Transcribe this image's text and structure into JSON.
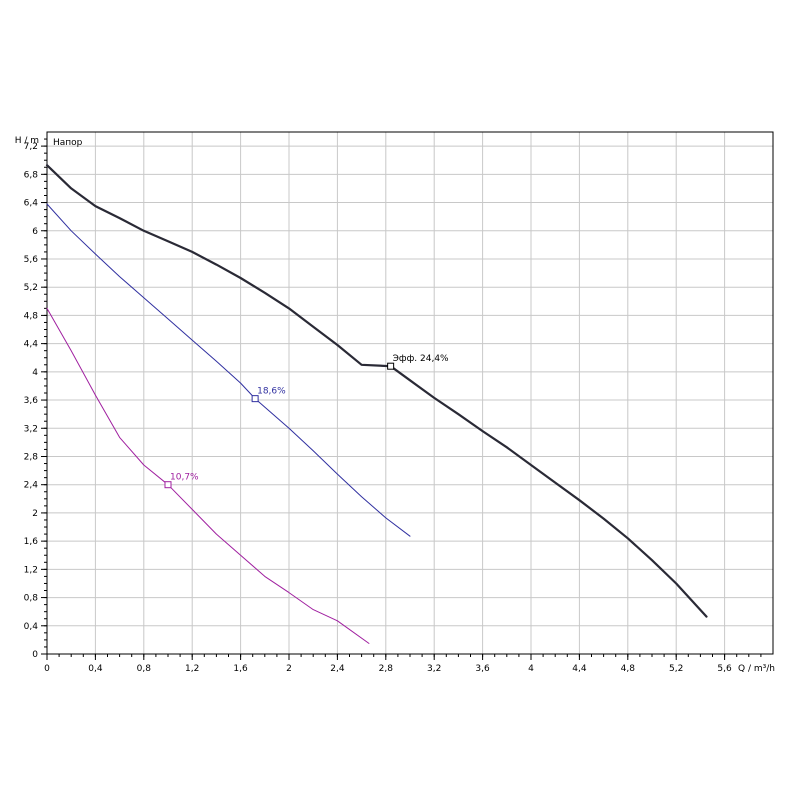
{
  "chart_data": {
    "type": "line",
    "title": "Напор",
    "xlabel": "Q / m³/h",
    "ylabel": "H / m",
    "x_ticks": [
      "0",
      "0,4",
      "0,8",
      "1,2",
      "1,6",
      "2",
      "2,4",
      "2,8",
      "3,2",
      "3,6",
      "4",
      "4,4",
      "4,8",
      "5,2",
      "5,6"
    ],
    "y_ticks": [
      "0",
      "0,4",
      "0,8",
      "1,2",
      "1,6",
      "2",
      "2,4",
      "2,8",
      "3,2",
      "3,6",
      "4",
      "4,4",
      "4,8",
      "5,2",
      "5,6",
      "6",
      "6,4",
      "6,8",
      "7,2"
    ],
    "xlim": [
      0,
      6.0
    ],
    "ylim": [
      0,
      7.4
    ],
    "grid": true,
    "series": [
      {
        "name": "",
        "color": "#2a2a36",
        "x": [
          0,
          0.2,
          0.4,
          0.6,
          0.8,
          1.0,
          1.2,
          1.4,
          1.6,
          1.8,
          2.0,
          2.2,
          2.4,
          2.6,
          2.84,
          3.0,
          3.2,
          3.4,
          3.6,
          3.8,
          4.0,
          4.2,
          4.4,
          4.6,
          4.8,
          5.0,
          5.2,
          5.45
        ],
        "y": [
          6.93,
          6.6,
          6.35,
          6.18,
          6.0,
          5.85,
          5.7,
          5.52,
          5.33,
          5.12,
          4.9,
          4.64,
          4.38,
          4.1,
          4.08,
          3.88,
          3.63,
          3.4,
          3.16,
          2.93,
          2.68,
          2.43,
          2.18,
          1.92,
          1.64,
          1.33,
          1.0,
          0.53
        ],
        "marker": {
          "x": 2.84,
          "y": 4.08,
          "label": "Эфф.  24,4%"
        }
      },
      {
        "name": "",
        "color": "#3030a0",
        "x": [
          0,
          0.2,
          0.4,
          0.6,
          0.8,
          1.0,
          1.2,
          1.4,
          1.6,
          1.72,
          1.8,
          2.0,
          2.2,
          2.4,
          2.6,
          2.8,
          3.0
        ],
        "y": [
          6.38,
          6.0,
          5.67,
          5.35,
          5.05,
          4.75,
          4.45,
          4.15,
          3.84,
          3.62,
          3.5,
          3.2,
          2.88,
          2.55,
          2.23,
          1.93,
          1.67
        ],
        "marker": {
          "x": 1.72,
          "y": 3.62,
          "label": "18,6%"
        }
      },
      {
        "name": "",
        "color": "#a020a0",
        "x": [
          0,
          0.2,
          0.4,
          0.6,
          0.8,
          1.0,
          1.2,
          1.4,
          1.6,
          1.8,
          2.0,
          2.2,
          2.4,
          2.66
        ],
        "y": [
          4.9,
          4.3,
          3.67,
          3.07,
          2.68,
          2.4,
          2.05,
          1.7,
          1.4,
          1.1,
          0.87,
          0.63,
          0.47,
          0.15
        ],
        "marker": {
          "x": 1.0,
          "y": 2.4,
          "label": "10,7%"
        }
      }
    ]
  }
}
